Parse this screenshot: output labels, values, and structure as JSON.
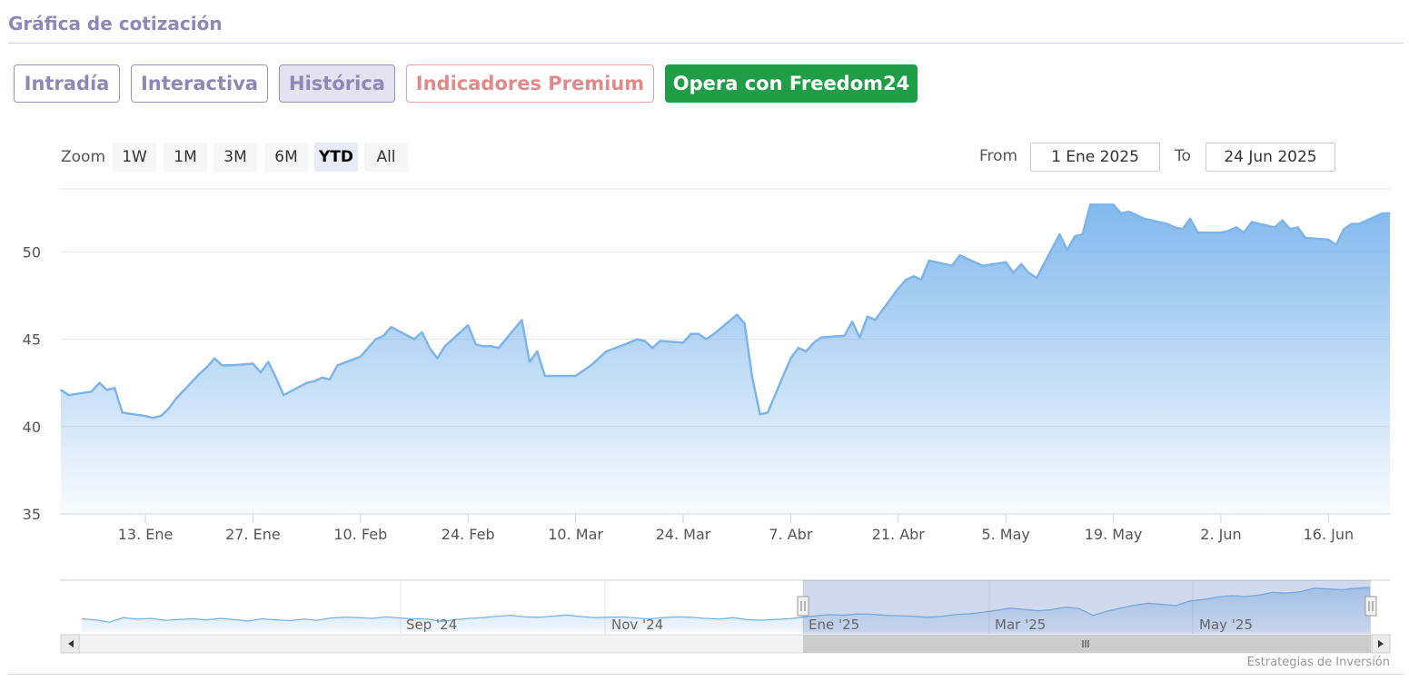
{
  "section_title": "Gráfica de cotización",
  "tabs": [
    {
      "label": "Intradía"
    },
    {
      "label": "Interactiva"
    },
    {
      "label": "Histórica"
    },
    {
      "label": "Indicadores Premium"
    },
    {
      "label": "Opera con Freedom24"
    }
  ],
  "zoom": {
    "label": "Zoom",
    "buttons": [
      "1W",
      "1M",
      "3M",
      "6M",
      "YTD",
      "All"
    ],
    "selected": "YTD"
  },
  "range": {
    "from_label": "From",
    "from_value": "1 Ene 2025",
    "to_label": "To",
    "to_value": "24 Jun 2025"
  },
  "credits": "Estrategias de Inversión",
  "colors": {
    "series_line": "#7cb5ec",
    "accent_purple": "#8f87b8",
    "premium_red": "#e08b8b",
    "opera_green": "#1f9e47"
  },
  "chart_data": {
    "type": "area",
    "title": "",
    "xlabel": "",
    "ylabel": "",
    "ylim": [
      35,
      53.5
    ],
    "y_ticks": [
      35,
      40,
      45,
      50
    ],
    "x_tick_labels": [
      {
        "date": "2025-01-13",
        "label": "13. Ene"
      },
      {
        "date": "2025-01-27",
        "label": "27. Ene"
      },
      {
        "date": "2025-02-10",
        "label": "10. Feb"
      },
      {
        "date": "2025-02-24",
        "label": "24. Feb"
      },
      {
        "date": "2025-03-10",
        "label": "10. Mar"
      },
      {
        "date": "2025-03-24",
        "label": "24. Mar"
      },
      {
        "date": "2025-04-07",
        "label": "7. Abr"
      },
      {
        "date": "2025-04-21",
        "label": "21. Abr"
      },
      {
        "date": "2025-05-05",
        "label": "5. May"
      },
      {
        "date": "2025-05-19",
        "label": "19. May"
      },
      {
        "date": "2025-06-02",
        "label": "2. Jun"
      },
      {
        "date": "2025-06-16",
        "label": "16. Jun"
      }
    ],
    "x_range": [
      "2025-01-02",
      "2025-06-24"
    ],
    "grid": true,
    "legend": "none",
    "series": [
      {
        "points": [
          [
            "2025-01-02",
            42.1
          ],
          [
            "2025-01-03",
            41.8
          ],
          [
            "2025-01-06",
            42.0
          ],
          [
            "2025-01-07",
            42.5
          ],
          [
            "2025-01-08",
            42.1
          ],
          [
            "2025-01-09",
            42.2
          ],
          [
            "2025-01-10",
            40.8
          ],
          [
            "2025-01-13",
            40.6
          ],
          [
            "2025-01-14",
            40.5
          ],
          [
            "2025-01-15",
            40.6
          ],
          [
            "2025-01-16",
            41.0
          ],
          [
            "2025-01-17",
            41.6
          ],
          [
            "2025-01-20",
            43.0
          ],
          [
            "2025-01-21",
            43.4
          ],
          [
            "2025-01-22",
            43.9
          ],
          [
            "2025-01-23",
            43.5
          ],
          [
            "2025-01-24",
            43.5
          ],
          [
            "2025-01-27",
            43.6
          ],
          [
            "2025-01-28",
            43.1
          ],
          [
            "2025-01-29",
            43.7
          ],
          [
            "2025-01-30",
            42.8
          ],
          [
            "2025-01-31",
            41.8
          ],
          [
            "2025-02-03",
            42.5
          ],
          [
            "2025-02-04",
            42.6
          ],
          [
            "2025-02-05",
            42.8
          ],
          [
            "2025-02-06",
            42.7
          ],
          [
            "2025-02-07",
            43.5
          ],
          [
            "2025-02-10",
            44.0
          ],
          [
            "2025-02-11",
            44.5
          ],
          [
            "2025-02-12",
            45.0
          ],
          [
            "2025-02-13",
            45.2
          ],
          [
            "2025-02-14",
            45.7
          ],
          [
            "2025-02-17",
            45.0
          ],
          [
            "2025-02-18",
            45.4
          ],
          [
            "2025-02-19",
            44.5
          ],
          [
            "2025-02-20",
            43.9
          ],
          [
            "2025-02-21",
            44.6
          ],
          [
            "2025-02-24",
            45.8
          ],
          [
            "2025-02-25",
            44.7
          ],
          [
            "2025-02-26",
            44.6
          ],
          [
            "2025-02-27",
            44.6
          ],
          [
            "2025-02-28",
            44.5
          ],
          [
            "2025-03-03",
            46.1
          ],
          [
            "2025-03-04",
            43.7
          ],
          [
            "2025-03-05",
            44.3
          ],
          [
            "2025-03-06",
            42.9
          ],
          [
            "2025-03-07",
            42.9
          ],
          [
            "2025-03-10",
            42.9
          ],
          [
            "2025-03-11",
            43.2
          ],
          [
            "2025-03-12",
            43.5
          ],
          [
            "2025-03-13",
            43.9
          ],
          [
            "2025-03-14",
            44.3
          ],
          [
            "2025-03-17",
            44.8
          ],
          [
            "2025-03-18",
            45.0
          ],
          [
            "2025-03-19",
            44.9
          ],
          [
            "2025-03-20",
            44.5
          ],
          [
            "2025-03-21",
            44.9
          ],
          [
            "2025-03-24",
            44.8
          ],
          [
            "2025-03-25",
            45.3
          ],
          [
            "2025-03-26",
            45.3
          ],
          [
            "2025-03-27",
            45.0
          ],
          [
            "2025-03-28",
            45.3
          ],
          [
            "2025-03-31",
            46.4
          ],
          [
            "2025-04-01",
            45.9
          ],
          [
            "2025-04-02",
            42.8
          ],
          [
            "2025-04-03",
            40.7
          ],
          [
            "2025-04-04",
            40.8
          ],
          [
            "2025-04-07",
            43.9
          ],
          [
            "2025-04-08",
            44.5
          ],
          [
            "2025-04-09",
            44.3
          ],
          [
            "2025-04-10",
            44.8
          ],
          [
            "2025-04-11",
            45.1
          ],
          [
            "2025-04-14",
            45.2
          ],
          [
            "2025-04-15",
            46.0
          ],
          [
            "2025-04-16",
            45.1
          ],
          [
            "2025-04-17",
            46.3
          ],
          [
            "2025-04-18",
            46.1
          ],
          [
            "2025-04-21",
            47.9
          ],
          [
            "2025-04-22",
            48.4
          ],
          [
            "2025-04-23",
            48.6
          ],
          [
            "2025-04-24",
            48.4
          ],
          [
            "2025-04-25",
            49.5
          ],
          [
            "2025-04-28",
            49.2
          ],
          [
            "2025-04-29",
            49.8
          ],
          [
            "2025-04-30",
            49.6
          ],
          [
            "2025-05-01",
            49.4
          ],
          [
            "2025-05-02",
            49.2
          ],
          [
            "2025-05-05",
            49.4
          ],
          [
            "2025-05-06",
            48.8
          ],
          [
            "2025-05-07",
            49.3
          ],
          [
            "2025-05-08",
            48.8
          ],
          [
            "2025-05-09",
            48.5
          ],
          [
            "2025-05-12",
            51.0
          ],
          [
            "2025-05-13",
            50.1
          ],
          [
            "2025-05-14",
            50.9
          ],
          [
            "2025-05-15",
            51.0
          ],
          [
            "2025-05-16",
            52.7
          ],
          [
            "2025-05-19",
            52.7
          ],
          [
            "2025-05-20",
            52.2
          ],
          [
            "2025-05-21",
            52.3
          ],
          [
            "2025-05-22",
            52.1
          ],
          [
            "2025-05-23",
            51.9
          ],
          [
            "2025-05-26",
            51.6
          ],
          [
            "2025-05-27",
            51.4
          ],
          [
            "2025-05-28",
            51.3
          ],
          [
            "2025-05-29",
            51.9
          ],
          [
            "2025-05-30",
            51.1
          ],
          [
            "2025-06-02",
            51.1
          ],
          [
            "2025-06-03",
            51.2
          ],
          [
            "2025-06-04",
            51.4
          ],
          [
            "2025-06-05",
            51.1
          ],
          [
            "2025-06-06",
            51.7
          ],
          [
            "2025-06-09",
            51.4
          ],
          [
            "2025-06-10",
            51.8
          ],
          [
            "2025-06-11",
            51.3
          ],
          [
            "2025-06-12",
            51.4
          ],
          [
            "2025-06-13",
            50.8
          ],
          [
            "2025-06-16",
            50.7
          ],
          [
            "2025-06-17",
            50.4
          ],
          [
            "2025-06-18",
            51.3
          ],
          [
            "2025-06-19",
            51.6
          ],
          [
            "2025-06-20",
            51.6
          ],
          [
            "2025-06-23",
            52.2
          ],
          [
            "2025-06-24",
            52.2
          ]
        ]
      }
    ],
    "navigator": {
      "x_labels": [
        "Sep '24",
        "Nov '24",
        "Ene '25",
        "Mar '25",
        "May '25"
      ],
      "selected_range": [
        "2025-01-01",
        "2025-06-24"
      ],
      "values": [
        38.5,
        38.2,
        37.6,
        38.8,
        38.4,
        38.6,
        38.1,
        38.3,
        38.5,
        38.2,
        38.6,
        38.3,
        37.9,
        38.5,
        38.2,
        38.0,
        38.4,
        38.1,
        38.7,
        38.9,
        38.8,
        38.6,
        39.0,
        38.7,
        38.5,
        38.4,
        37.8,
        38.3,
        38.6,
        38.8,
        39.2,
        39.4,
        39.0,
        38.9,
        39.2,
        39.5,
        39.1,
        38.8,
        38.9,
        39.0,
        38.7,
        38.5,
        38.8,
        39.0,
        38.9,
        38.6,
        38.4,
        38.8,
        38.3,
        38.1,
        38.3,
        38.5,
        38.9,
        39.3,
        39.6,
        39.4,
        39.8,
        39.7,
        39.4,
        39.3,
        39.2,
        38.9,
        39.1,
        39.6,
        39.8,
        40.2,
        40.7,
        41.3,
        41.0,
        40.6,
        40.9,
        41.6,
        41.2,
        39.4,
        40.5,
        41.3,
        42.1,
        42.6,
        42.3,
        42.0,
        43.2,
        43.6,
        44.3,
        44.6,
        44.4,
        44.8,
        45.5,
        45.3,
        45.7,
        46.6,
        46.4,
        46.2,
        46.6,
        46.8
      ]
    }
  }
}
